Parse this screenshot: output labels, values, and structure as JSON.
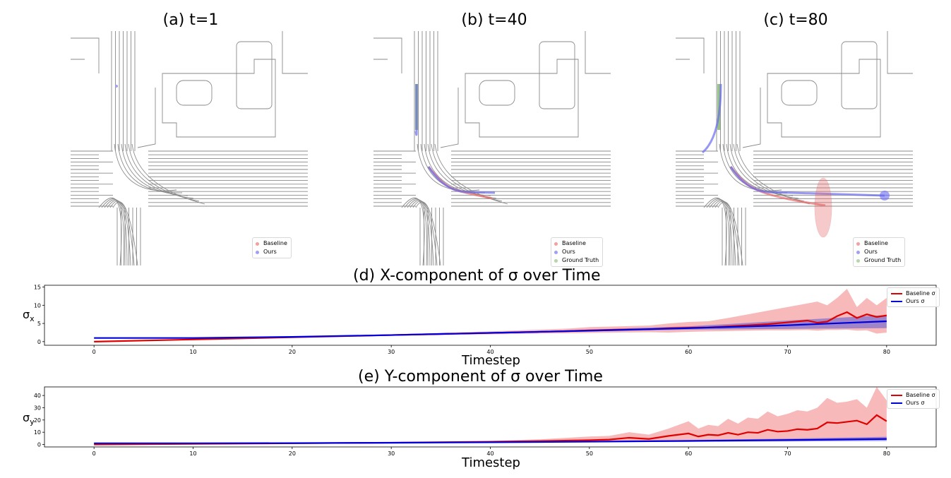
{
  "panels": [
    {
      "title": "(a) t=1"
    },
    {
      "title": "(b) t=40"
    },
    {
      "title": "(c) t=80"
    }
  ],
  "map_legend": {
    "items": [
      {
        "label": "Baseline",
        "color": "#f2a0a0"
      },
      {
        "label": "Ours",
        "color": "#a0a0f5"
      },
      {
        "label": "Ground Truth",
        "color": "#b5d6a7"
      }
    ],
    "first_panel_items": [
      {
        "label": "Baseline",
        "color": "#f2a0a0"
      },
      {
        "label": "Ours",
        "color": "#a0a0f5"
      }
    ]
  },
  "colors": {
    "baseline": "#e00000",
    "baseline_band": "#f08080",
    "ours": "#0000dd",
    "ours_band": "#5a5ad8",
    "road": "#8a8a8a"
  },
  "chart_data": [
    {
      "type": "line",
      "title": "(d) X-component of σ over Time",
      "xlabel": "Timestep",
      "ylabel_main": "σ",
      "ylabel_sub": "x",
      "xlim": [
        -5,
        85
      ],
      "ylim": [
        -1,
        15.5
      ],
      "xticks": [
        0,
        10,
        20,
        30,
        40,
        50,
        60,
        70,
        80
      ],
      "yticks": [
        0,
        5,
        10,
        15
      ],
      "legend_position": "top-right",
      "series": [
        {
          "name": "Baseline σ",
          "color": "#e00000",
          "x": [
            0,
            10,
            20,
            30,
            35,
            40,
            45,
            48,
            50,
            53,
            56,
            58,
            60,
            62,
            64,
            66,
            68,
            70,
            72,
            73,
            74,
            75,
            76,
            77,
            78,
            79,
            80
          ],
          "values": [
            0,
            0.6,
            1.2,
            1.8,
            2.1,
            2.4,
            2.7,
            2.9,
            3.1,
            3.3,
            3.4,
            3.7,
            3.8,
            3.9,
            4.2,
            4.5,
            4.8,
            5.3,
            5.8,
            5.2,
            5.5,
            7.0,
            8.1,
            6.5,
            7.5,
            6.8,
            7.2
          ],
          "band_lower": [
            0,
            0.5,
            1.1,
            1.6,
            1.8,
            2.0,
            2.2,
            2.3,
            2.4,
            2.5,
            2.6,
            2.5,
            2.7,
            2.8,
            2.9,
            3.0,
            3.1,
            3.1,
            3.2,
            3.0,
            3.2,
            3.2,
            3.3,
            3.0,
            3.1,
            2.2,
            2.5
          ],
          "band_upper": [
            0,
            0.7,
            1.3,
            2.0,
            2.4,
            2.8,
            3.3,
            3.6,
            4.0,
            4.2,
            4.4,
            5.0,
            5.4,
            5.6,
            6.5,
            7.5,
            8.5,
            9.5,
            10.5,
            11.0,
            10.0,
            12.0,
            14.5,
            9.5,
            12.0,
            10.0,
            12.0
          ]
        },
        {
          "name": "Ours σ",
          "color": "#0000dd",
          "x": [
            0,
            10,
            20,
            30,
            40,
            50,
            60,
            70,
            80
          ],
          "values": [
            1.0,
            1.0,
            1.3,
            1.8,
            2.4,
            3.0,
            3.7,
            4.5,
            5.6
          ],
          "band_lower": [
            1.0,
            1.0,
            1.3,
            1.8,
            2.3,
            2.8,
            3.3,
            3.5,
            3.7
          ],
          "band_upper": [
            1.0,
            1.0,
            1.3,
            1.8,
            2.5,
            3.3,
            4.2,
            5.8,
            7.3
          ]
        }
      ]
    },
    {
      "type": "line",
      "title": "(e) Y-component of σ over Time",
      "xlabel": "Timestep",
      "ylabel_main": "σ",
      "ylabel_sub": "y",
      "xlim": [
        -5,
        85
      ],
      "ylim": [
        -2,
        47
      ],
      "xticks": [
        0,
        10,
        20,
        30,
        40,
        50,
        60,
        70,
        80
      ],
      "yticks": [
        0,
        10,
        20,
        30,
        40
      ],
      "legend_position": "top-right",
      "series": [
        {
          "name": "Baseline σ",
          "color": "#e00000",
          "x": [
            0,
            10,
            20,
            30,
            40,
            45,
            50,
            52,
            54,
            56,
            58,
            60,
            61,
            62,
            63,
            64,
            65,
            66,
            67,
            68,
            69,
            70,
            71,
            72,
            73,
            74,
            75,
            76,
            77,
            78,
            79,
            80
          ],
          "values": [
            0,
            0.5,
            1.0,
            1.5,
            2.2,
            2.8,
            3.5,
            4.0,
            5.5,
            4.5,
            7.0,
            9.0,
            6.5,
            8.0,
            7.5,
            9.5,
            8.0,
            10.0,
            9.5,
            12.0,
            10.5,
            11.0,
            12.5,
            12.0,
            13.0,
            18.0,
            17.5,
            18.5,
            19.5,
            16.5,
            24.0,
            19.0
          ],
          "band_lower": [
            0,
            0.4,
            0.8,
            1.2,
            1.6,
            1.9,
            2.2,
            2.3,
            2.4,
            2.4,
            2.6,
            2.8,
            2.8,
            2.9,
            3.0,
            3.0,
            3.1,
            3.2,
            3.3,
            3.3,
            3.4,
            3.5,
            3.6,
            3.7,
            3.8,
            3.9,
            4.0,
            4.2,
            4.3,
            4.4,
            4.5,
            4.5
          ],
          "band_upper": [
            0,
            0.6,
            1.2,
            1.8,
            3.0,
            4.2,
            6.5,
            7.0,
            10.0,
            8.0,
            13.0,
            19.0,
            13.0,
            16.0,
            15.0,
            21.0,
            17.0,
            22.0,
            21.0,
            27.0,
            23.0,
            25.0,
            28.0,
            27.0,
            30.0,
            38.0,
            34.0,
            35.0,
            37.0,
            30.0,
            47.0,
            36.0
          ]
        },
        {
          "name": "Ours σ",
          "color": "#0000dd",
          "x": [
            0,
            10,
            20,
            30,
            40,
            50,
            60,
            70,
            80
          ],
          "values": [
            1.0,
            1.0,
            1.1,
            1.4,
            1.8,
            2.3,
            2.9,
            3.6,
            4.5
          ],
          "band_lower": [
            1.0,
            1.0,
            1.1,
            1.3,
            1.6,
            1.9,
            2.2,
            2.5,
            2.8
          ],
          "band_upper": [
            1.0,
            1.0,
            1.1,
            1.5,
            2.0,
            2.7,
            3.6,
            4.8,
            6.3
          ]
        }
      ]
    }
  ]
}
